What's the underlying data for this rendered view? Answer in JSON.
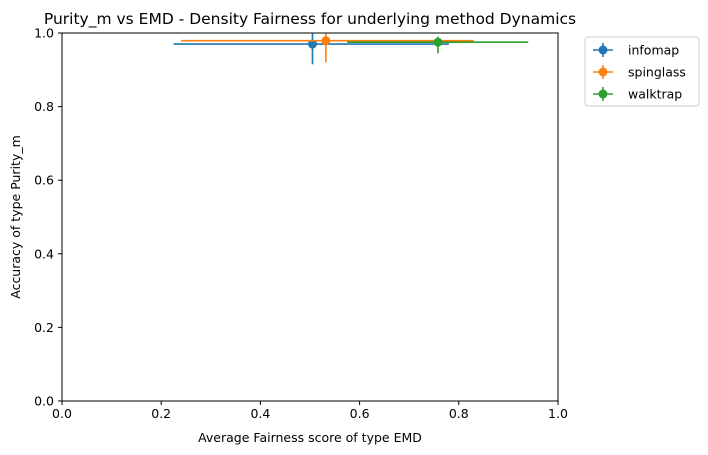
{
  "chart_data": {
    "type": "scatter",
    "title": "Purity_m vs EMD - Density Fairness for underlying method Dynamics",
    "xlabel": "Average Fairness score of type EMD",
    "ylabel": "Accuracy of type Purity_m",
    "xlim": [
      0.0,
      1.0
    ],
    "ylim": [
      0.0,
      1.0
    ],
    "xticks": [
      "0.0",
      "0.2",
      "0.4",
      "0.6",
      "0.8",
      "1.0"
    ],
    "yticks": [
      "0.0",
      "0.2",
      "0.4",
      "0.6",
      "0.8",
      "1.0"
    ],
    "grid": false,
    "legend_position": "outside-top-right",
    "series": [
      {
        "name": "infomap",
        "color": "#1f77b4",
        "x": 0.505,
        "y": 0.97,
        "xerr": [
          0.225,
          0.78
        ],
        "yerr": [
          0.915,
          1.0
        ]
      },
      {
        "name": "spinglass",
        "color": "#ff7f0e",
        "x": 0.532,
        "y": 0.979,
        "xerr": [
          0.24,
          0.83
        ],
        "yerr": [
          0.92,
          1.0
        ]
      },
      {
        "name": "walktrap",
        "color": "#2ca02c",
        "x": 0.758,
        "y": 0.975,
        "xerr": [
          0.575,
          0.94
        ],
        "yerr": [
          0.945,
          0.99
        ]
      }
    ]
  }
}
